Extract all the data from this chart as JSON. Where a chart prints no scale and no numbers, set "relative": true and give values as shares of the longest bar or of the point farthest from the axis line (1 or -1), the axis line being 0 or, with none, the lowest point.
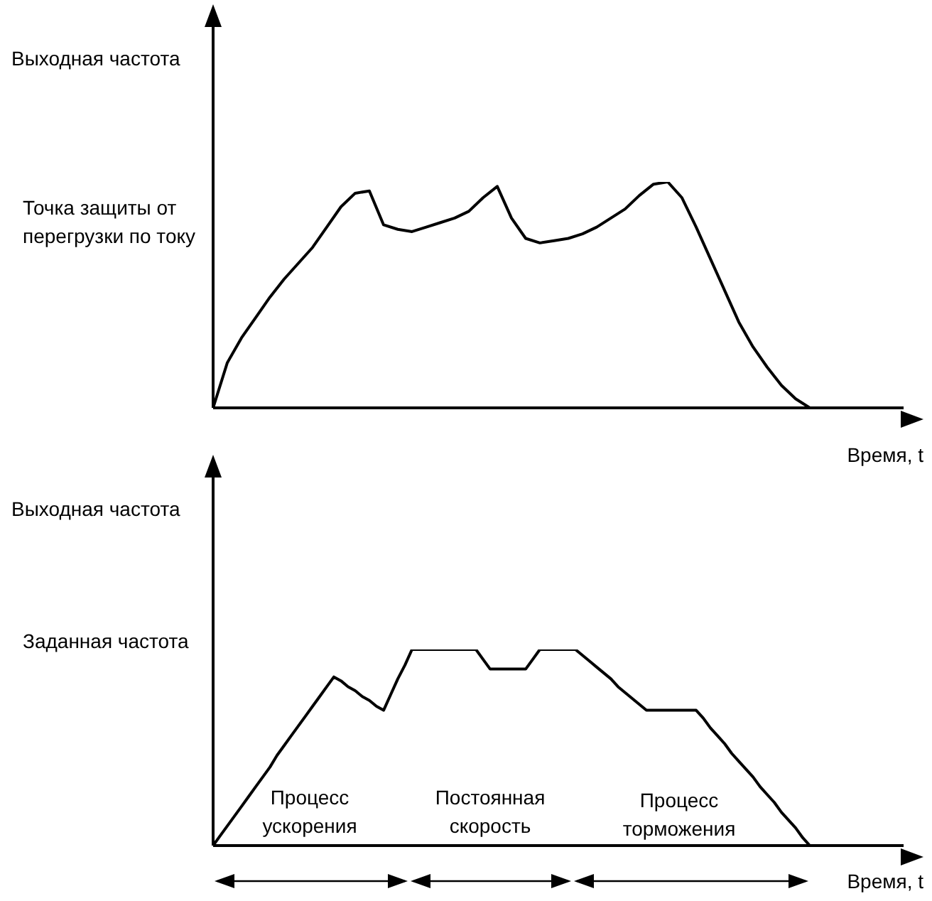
{
  "chart_data": [
    {
      "type": "line",
      "relative": true,
      "ylabel": "Выходная частота",
      "xlabel": "Время, t",
      "color": "#000000",
      "categories": [
        null,
        null,
        null,
        null,
        null,
        null,
        null,
        null,
        null,
        null,
        null,
        null,
        null,
        null,
        null,
        null,
        null,
        null,
        null,
        null,
        null,
        null,
        null,
        null,
        null,
        null,
        null,
        null,
        null,
        null,
        null,
        null,
        null,
        null,
        null,
        null,
        null,
        null,
        null,
        null,
        null,
        null,
        null
      ],
      "values": [
        0,
        0.2,
        0.31,
        0.4,
        0.49,
        0.57,
        0.64,
        0.71,
        0.8,
        0.89,
        0.95,
        0.96,
        0.81,
        0.79,
        0.78,
        0.8,
        0.82,
        0.84,
        0.87,
        0.93,
        0.98,
        0.84,
        0.75,
        0.73,
        0.74,
        0.75,
        0.77,
        0.8,
        0.84,
        0.88,
        0.94,
        0.99,
        1,
        0.93,
        0.8,
        0.66,
        0.52,
        0.38,
        0.27,
        0.18,
        0.1,
        0.04,
        0
      ],
      "annotations": [
        "Точка защиты от перегрузки по току"
      ]
    },
    {
      "type": "line",
      "relative": true,
      "ylabel": "Выходная частота",
      "xlabel": "Время, t",
      "color": "#000000",
      "categories": [
        null,
        null,
        null,
        null,
        null,
        null,
        null,
        null,
        null,
        null,
        null,
        null,
        null,
        null,
        null,
        null,
        null,
        null,
        null,
        null,
        null,
        null,
        null,
        null,
        null,
        null,
        null,
        null,
        null,
        null,
        null,
        null,
        null,
        null,
        null,
        null,
        null,
        null,
        null,
        null,
        null,
        null,
        null,
        null,
        null,
        null,
        null,
        null,
        null,
        null,
        null,
        null,
        null,
        null,
        null,
        null,
        null,
        null,
        null,
        null,
        null,
        null,
        null,
        null,
        null,
        null,
        null,
        null,
        null,
        null,
        null,
        null,
        null,
        null,
        null,
        null,
        null,
        null,
        null,
        null,
        null,
        null,
        null,
        null,
        null
      ],
      "values": [
        0,
        0.05,
        0.1,
        0.15,
        0.2,
        0.25,
        0.3,
        0.35,
        0.4,
        0.46,
        0.51,
        0.56,
        0.61,
        0.66,
        0.71,
        0.76,
        0.81,
        0.86,
        0.84,
        0.81,
        0.79,
        0.76,
        0.74,
        0.71,
        0.69,
        0.77,
        0.85,
        0.92,
        1,
        1,
        1,
        1,
        1,
        1,
        1,
        1,
        1,
        1,
        0.95,
        0.9,
        0.9,
        0.9,
        0.9,
        0.9,
        0.9,
        0.95,
        1,
        1,
        1,
        1,
        1,
        1,
        0.97,
        0.94,
        0.91,
        0.88,
        0.85,
        0.81,
        0.78,
        0.75,
        0.72,
        0.69,
        0.69,
        0.69,
        0.69,
        0.69,
        0.69,
        0.69,
        0.69,
        0.65,
        0.6,
        0.56,
        0.52,
        0.47,
        0.43,
        0.39,
        0.35,
        0.3,
        0.26,
        0.22,
        0.17,
        0.13,
        0.09,
        0.04,
        0
      ],
      "annotations": [
        "Заданная частота",
        "Процесс ускорения",
        "Постоянная скорость",
        "Процесс торможения"
      ]
    }
  ]
}
